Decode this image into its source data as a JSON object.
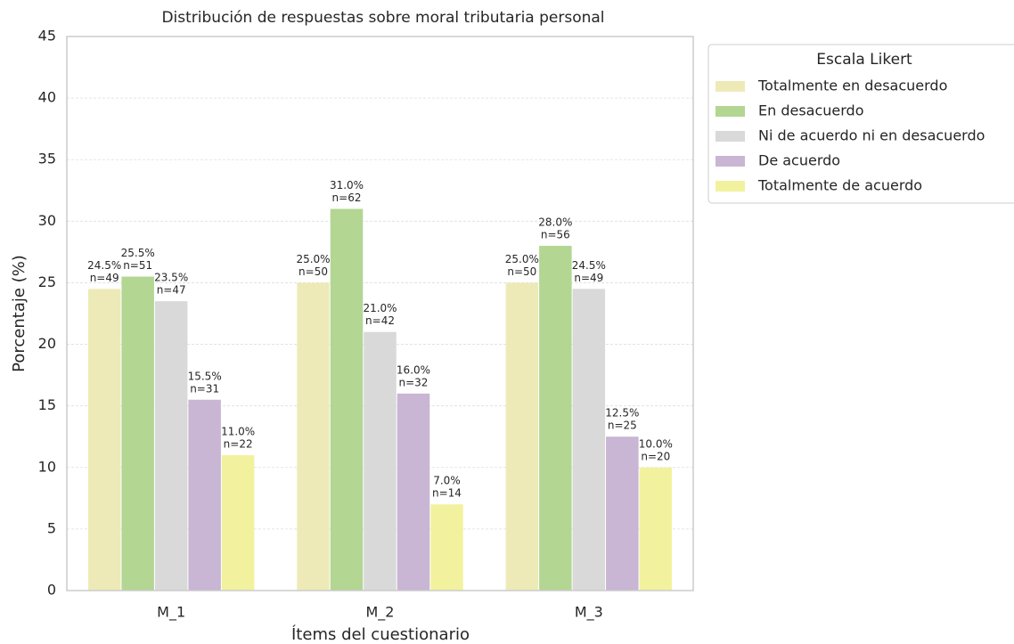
{
  "chart_data": {
    "type": "bar",
    "title": "Distribución de respuestas sobre moral tributaria personal",
    "x_label": "Ítems del cuestionario",
    "y_label": "Porcentaje (%)",
    "categories": [
      "M_1",
      "M_2",
      "M_3"
    ],
    "series": [
      {
        "name": "Totalmente en desacuerdo",
        "color": "#eeeab8",
        "values": [
          24.5,
          25.0,
          25.0
        ],
        "value_labels": [
          "24.5%",
          "25.0%",
          "25.0%"
        ],
        "n_labels": [
          "n=49",
          "n=50",
          "n=50"
        ]
      },
      {
        "name": "En desacuerdo",
        "color": "#b3d693",
        "values": [
          25.5,
          31.0,
          28.0
        ],
        "value_labels": [
          "25.5%",
          "31.0%",
          "28.0%"
        ],
        "n_labels": [
          "n=51",
          "n=62",
          "n=56"
        ]
      },
      {
        "name": "Ni de acuerdo ni en desacuerdo",
        "color": "#d9d9d9",
        "values": [
          23.5,
          21.0,
          24.5
        ],
        "value_labels": [
          "23.5%",
          "21.0%",
          "24.5%"
        ],
        "n_labels": [
          "n=47",
          "n=42",
          "n=49"
        ]
      },
      {
        "name": "De acuerdo",
        "color": "#c9b5d4",
        "values": [
          15.5,
          16.0,
          12.5
        ],
        "value_labels": [
          "15.5%",
          "16.0%",
          "12.5%"
        ],
        "n_labels": [
          "n=31",
          "n=32",
          "n=25"
        ]
      },
      {
        "name": "Totalmente de acuerdo",
        "color": "#f2f29e",
        "values": [
          11.0,
          7.0,
          10.0
        ],
        "value_labels": [
          "11.0%",
          "7.0%",
          "10.0%"
        ],
        "n_labels": [
          "n=22",
          "n=14",
          "n=20"
        ]
      }
    ],
    "legend_title": "Escala Likert",
    "legend": "outside-upper-right",
    "ylim": [
      0,
      45
    ],
    "yticks": [
      0,
      5,
      10,
      15,
      20,
      25,
      30,
      35,
      40,
      45
    ],
    "grid": true
  }
}
